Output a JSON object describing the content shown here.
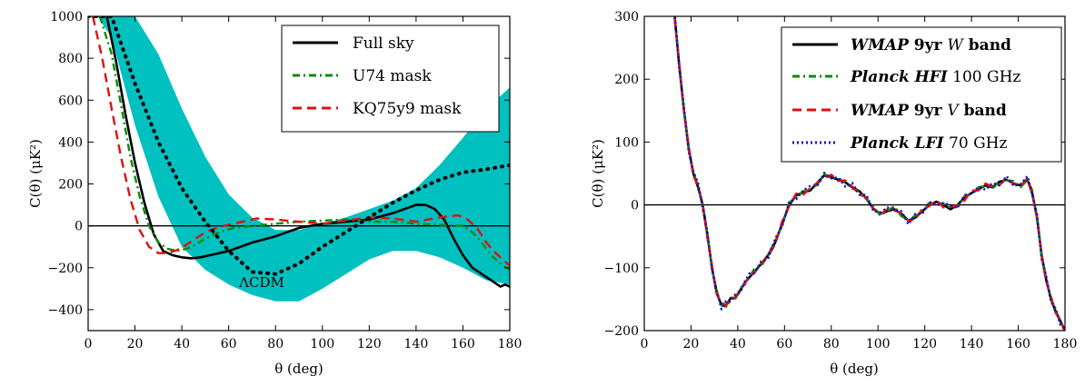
{
  "chart_data": [
    {
      "type": "line",
      "xlabel": "θ (deg)",
      "ylabel": "C(θ) (μK²)",
      "xlim": [
        0,
        180
      ],
      "ylim": [
        -500,
        1000
      ],
      "x_ticks": [
        "0",
        "20",
        "40",
        "60",
        "80",
        "100",
        "120",
        "140",
        "160",
        "180"
      ],
      "y_ticks": [
        "−400",
        "−200",
        "0",
        "200",
        "400",
        "600",
        "800",
        "1000"
      ],
      "x_tick_values": [
        0,
        20,
        40,
        60,
        80,
        100,
        120,
        140,
        160,
        180
      ],
      "y_tick_values": [
        -400,
        -200,
        0,
        200,
        400,
        600,
        800,
        1000
      ],
      "legend_position": "top-right",
      "zero_line": true,
      "annotation": "ΛCDM",
      "band": {
        "color": "#00c0c0",
        "x": [
          4,
          10,
          20,
          30,
          40,
          50,
          60,
          70,
          80,
          90,
          100,
          110,
          120,
          130,
          140,
          150,
          160,
          170,
          180
        ],
        "upper": [
          1000,
          1000,
          1000,
          820,
          560,
          330,
          150,
          40,
          -20,
          -20,
          10,
          40,
          80,
          120,
          180,
          290,
          420,
          560,
          660
        ],
        "lower": [
          1000,
          900,
          480,
          140,
          -100,
          -210,
          -280,
          -330,
          -360,
          -360,
          -300,
          -230,
          -160,
          -120,
          -120,
          -150,
          -200,
          -260,
          -280
        ]
      },
      "series": [
        {
          "name": "Full sky",
          "color": "#000000",
          "style": "solid",
          "x": [
            8,
            12,
            16,
            20,
            24,
            28,
            32,
            36,
            40,
            44,
            48,
            52,
            56,
            60,
            70,
            80,
            90,
            100,
            110,
            120,
            130,
            140,
            144,
            148,
            152,
            156,
            160,
            164,
            168,
            172,
            176,
            178,
            180
          ],
          "y": [
            1000,
            780,
            530,
            300,
            110,
            -40,
            -120,
            -140,
            -150,
            -155,
            -150,
            -140,
            -130,
            -120,
            -80,
            -50,
            -10,
            10,
            20,
            30,
            60,
            100,
            100,
            80,
            30,
            -60,
            -140,
            -200,
            -230,
            -260,
            -290,
            -280,
            -290
          ]
        },
        {
          "name": "U74 mask",
          "color": "#0a8a0a",
          "style": "dashdot",
          "x": [
            5,
            10,
            14,
            18,
            22,
            26,
            30,
            34,
            38,
            42,
            46,
            50,
            56,
            62,
            70,
            80,
            90,
            100,
            110,
            120,
            130,
            140,
            150,
            160,
            164,
            168,
            172,
            176,
            180
          ],
          "y": [
            1000,
            820,
            580,
            330,
            140,
            0,
            -80,
            -110,
            -120,
            -110,
            -90,
            -60,
            -30,
            -10,
            0,
            10,
            20,
            25,
            30,
            20,
            20,
            10,
            5,
            0,
            -30,
            -80,
            -140,
            -180,
            -210
          ]
        },
        {
          "name": "KQ75y9 mask",
          "color": "#e01010",
          "style": "dashed",
          "x": [
            2,
            6,
            10,
            14,
            18,
            22,
            26,
            30,
            34,
            38,
            42,
            46,
            50,
            56,
            60,
            66,
            72,
            80,
            90,
            100,
            110,
            120,
            130,
            140,
            150,
            158,
            162,
            166,
            170,
            174,
            178,
            180
          ],
          "y": [
            1000,
            800,
            560,
            330,
            130,
            -20,
            -100,
            -130,
            -130,
            -115,
            -90,
            -60,
            -30,
            -5,
            5,
            20,
            35,
            30,
            20,
            10,
            25,
            40,
            35,
            20,
            40,
            50,
            30,
            -10,
            -80,
            -130,
            -170,
            -190
          ]
        },
        {
          "name": "",
          "color": "#000000",
          "style": "dotted",
          "x": [
            0,
            10,
            20,
            30,
            40,
            50,
            60,
            70,
            80,
            90,
            100,
            110,
            120,
            130,
            140,
            150,
            160,
            170,
            180
          ],
          "y": [
            1000,
            1000,
            680,
            400,
            180,
            20,
            -120,
            -220,
            -230,
            -180,
            -100,
            -30,
            40,
            110,
            170,
            220,
            255,
            270,
            290
          ]
        }
      ]
    },
    {
      "type": "line",
      "xlabel": "θ (deg)",
      "ylabel": "C(θ) (μK²)",
      "xlim": [
        0,
        180
      ],
      "ylim": [
        -200,
        300
      ],
      "x_ticks": [
        "0",
        "20",
        "40",
        "60",
        "80",
        "100",
        "120",
        "140",
        "160",
        "180"
      ],
      "y_ticks": [
        "−200",
        "−100",
        "0",
        "100",
        "200",
        "300"
      ],
      "x_tick_values": [
        0,
        20,
        40,
        60,
        80,
        100,
        120,
        140,
        160,
        180
      ],
      "y_tick_values": [
        -200,
        -100,
        0,
        100,
        200,
        300
      ],
      "legend_position": "top-right",
      "zero_line": true,
      "base_curve": {
        "x": [
          13,
          15,
          17,
          19,
          21,
          23,
          25,
          27,
          29,
          31,
          33,
          35,
          37,
          39,
          41,
          43,
          45,
          47,
          50,
          53,
          56,
          59,
          62,
          65,
          68,
          71,
          74,
          77,
          80,
          83,
          86,
          89,
          92,
          95,
          98,
          101,
          104,
          107,
          110,
          113,
          116,
          119,
          122,
          125,
          128,
          131,
          134,
          137,
          140,
          143,
          146,
          149,
          152,
          155,
          158,
          161,
          164,
          166,
          168,
          170,
          172,
          174,
          176,
          178,
          180
        ],
        "y": [
          300,
          220,
          150,
          90,
          50,
          30,
          0,
          -50,
          -100,
          -140,
          -160,
          -158,
          -150,
          -148,
          -135,
          -125,
          -115,
          -105,
          -95,
          -80,
          -60,
          -30,
          0,
          15,
          20,
          25,
          35,
          45,
          45,
          40,
          35,
          30,
          20,
          10,
          -5,
          -15,
          -10,
          -5,
          -15,
          -25,
          -20,
          -10,
          0,
          5,
          0,
          -5,
          0,
          10,
          20,
          25,
          30,
          30,
          35,
          40,
          35,
          30,
          40,
          20,
          -20,
          -80,
          -120,
          -150,
          -170,
          -185,
          -200
        ]
      },
      "series": [
        {
          "name": "WMAP 9yr W band",
          "name_parts": [
            "WMAP",
            " 9yr ",
            "W",
            " band"
          ],
          "color": "#000000",
          "style": "solid",
          "offset": [
            0,
            0,
            0,
            0,
            0,
            -2,
            0,
            2,
            -1,
            0,
            1,
            -2,
            2,
            0,
            -1,
            1,
            0,
            -2,
            1,
            0
          ]
        },
        {
          "name": "Planck HFI 100 GHz",
          "name_parts": [
            "Planck HFI",
            " 100 GHz"
          ],
          "color": "#0a8a0a",
          "style": "dashdot",
          "offset": [
            3,
            -2,
            4,
            -3,
            2,
            0,
            -3,
            4,
            -2,
            3,
            0,
            -4,
            2,
            -1,
            3,
            -2,
            0,
            3,
            -3,
            1
          ]
        },
        {
          "name": "WMAP 9yr V band",
          "name_parts": [
            "WMAP",
            " 9yr ",
            "V",
            " band"
          ],
          "color": "#e01010",
          "style": "dashed",
          "offset": [
            -3,
            4,
            -2,
            3,
            -4,
            2,
            0,
            -3,
            3,
            -2,
            4,
            -1,
            -3,
            2,
            -2,
            0,
            3,
            -4,
            2,
            -1
          ]
        },
        {
          "name": "Planck LFI 70 GHz",
          "name_parts": [
            "Planck LFI",
            " 70 GHz"
          ],
          "color": "#1010d0",
          "style": "dotted",
          "offset": [
            6,
            -4,
            5,
            -6,
            3,
            5,
            -5,
            6,
            -3,
            4,
            -6,
            5,
            -4,
            6,
            -5,
            3,
            6,
            -4,
            5,
            -6
          ]
        }
      ]
    }
  ]
}
